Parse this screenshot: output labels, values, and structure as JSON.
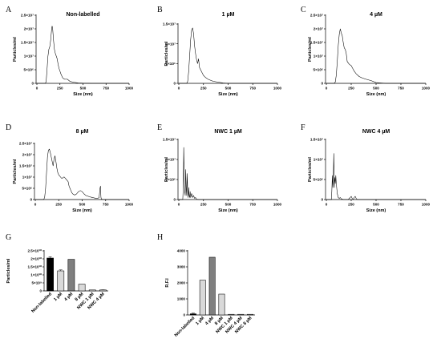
{
  "chart_data": [
    {
      "panel": "A",
      "type": "line",
      "title": "Non-labelled",
      "xlabel": "Size (nm)",
      "ylabel": "Particles/ml",
      "xlim": [
        0,
        1000
      ],
      "ylim": [
        0,
        25000000
      ],
      "xticks": [
        0,
        250,
        500,
        750,
        1000
      ],
      "yticks": [
        {
          "v": 0,
          "t": "0"
        },
        {
          "v": 5000000,
          "t": "5×10⁶"
        },
        {
          "v": 10000000,
          "t": "1×10⁷"
        },
        {
          "v": 15000000,
          "t": "1.5×10⁷"
        },
        {
          "v": 20000000,
          "t": "2×10⁷"
        },
        {
          "v": 25000000,
          "t": "2.5×10⁷"
        }
      ],
      "x": [
        0,
        60,
        90,
        100,
        110,
        120,
        130,
        140,
        150,
        160,
        165,
        170,
        180,
        190,
        200,
        210,
        220,
        230,
        240,
        250,
        260,
        280,
        300,
        330,
        360,
        400,
        450,
        500,
        600,
        700,
        800,
        1000
      ],
      "y": [
        0,
        0,
        0,
        500000,
        5000000,
        10000000,
        12500000,
        13500000,
        16000000,
        20000000,
        21000000,
        20500000,
        16000000,
        12500000,
        11000000,
        10000000,
        9000000,
        7000000,
        5500000,
        4500000,
        3500000,
        2000000,
        1500000,
        1500000,
        700000,
        400000,
        150000,
        50000,
        0,
        0,
        0,
        0
      ]
    },
    {
      "panel": "B",
      "type": "line",
      "title": "1 µM",
      "xlabel": "Size (nm)",
      "ylabel": "Particles/ml",
      "xlim": [
        0,
        1000
      ],
      "ylim": [
        0,
        15000000
      ],
      "xticks": [
        0,
        250,
        500,
        750,
        1000
      ],
      "yticks": [
        {
          "v": 0,
          "t": "0"
        },
        {
          "v": 5000000,
          "t": "5×10⁶"
        },
        {
          "v": 10000000,
          "t": "1×10⁷"
        },
        {
          "v": 15000000,
          "t": "1.5×10⁷"
        }
      ],
      "x": [
        0,
        50,
        80,
        90,
        100,
        110,
        120,
        130,
        140,
        150,
        160,
        170,
        180,
        190,
        200,
        210,
        230,
        250,
        270,
        300,
        350,
        400,
        450,
        500,
        600,
        800,
        1000
      ],
      "y": [
        0,
        0,
        0,
        500000,
        3000000,
        7000000,
        11000000,
        13500000,
        14000000,
        12500000,
        9500000,
        7500000,
        6000000,
        5000000,
        6200000,
        4000000,
        3000000,
        2000000,
        1500000,
        1000000,
        500000,
        300000,
        100000,
        0,
        0,
        0,
        0
      ]
    },
    {
      "panel": "C",
      "type": "line",
      "title": "4 µM",
      "xlabel": "Size (nm)",
      "ylabel": "Particles/ml",
      "xlim": [
        0,
        1000
      ],
      "ylim": [
        0,
        25000000
      ],
      "xticks": [
        0,
        250,
        500,
        750,
        1000
      ],
      "yticks": [
        {
          "v": 0,
          "t": "0"
        },
        {
          "v": 5000000,
          "t": "5×10⁶"
        },
        {
          "v": 10000000,
          "t": "1×10⁷"
        },
        {
          "v": 15000000,
          "t": "1.5×10⁷"
        },
        {
          "v": 20000000,
          "t": "2×10⁷"
        },
        {
          "v": 25000000,
          "t": "2.5×10⁷"
        }
      ],
      "x": [
        0,
        60,
        80,
        90,
        100,
        110,
        120,
        130,
        140,
        150,
        160,
        170,
        180,
        190,
        200,
        210,
        230,
        250,
        280,
        300,
        330,
        360,
        400,
        450,
        500,
        600,
        800,
        1000
      ],
      "y": [
        0,
        0,
        0,
        500000,
        3000000,
        8000000,
        14000000,
        18000000,
        20000000,
        18500000,
        17500000,
        15000000,
        13000000,
        12500000,
        11000000,
        8000000,
        7000000,
        6500000,
        4500000,
        3500000,
        2500000,
        2000000,
        1500000,
        1000000,
        300000,
        0,
        0,
        0
      ]
    },
    {
      "panel": "D",
      "type": "line",
      "title": "8 µM",
      "xlabel": "Size (nm)",
      "ylabel": "Particles/ml",
      "xlim": [
        0,
        1000
      ],
      "ylim": [
        0,
        25000000
      ],
      "xticks": [
        0,
        250,
        500,
        750,
        1000
      ],
      "yticks": [
        {
          "v": 0,
          "t": "0"
        },
        {
          "v": 5000000,
          "t": "5×10⁶"
        },
        {
          "v": 10000000,
          "t": "1×10⁷"
        },
        {
          "v": 15000000,
          "t": "1.5×10⁷"
        },
        {
          "v": 20000000,
          "t": "2×10⁷"
        },
        {
          "v": 25000000,
          "t": "2.5×10⁷"
        }
      ],
      "x": [
        0,
        70,
        90,
        100,
        110,
        120,
        130,
        140,
        150,
        160,
        170,
        180,
        190,
        200,
        210,
        220,
        230,
        240,
        250,
        260,
        270,
        280,
        290,
        300,
        310,
        320,
        330,
        340,
        350,
        360,
        370,
        380,
        390,
        400,
        420,
        440,
        460,
        480,
        500,
        520,
        540,
        560,
        580,
        600,
        620,
        640,
        660,
        680,
        690,
        695,
        700,
        705,
        720,
        800,
        1000
      ],
      "y": [
        0,
        0,
        0,
        1000000,
        5000000,
        12000000,
        19000000,
        22000000,
        22500000,
        21000000,
        19000000,
        17000000,
        15000000,
        18000000,
        19500000,
        17000000,
        14000000,
        12000000,
        11000000,
        10500000,
        10000000,
        9500000,
        9500000,
        10000000,
        10000000,
        9500000,
        9000000,
        8500000,
        8000000,
        6000000,
        5000000,
        4000000,
        3000000,
        2500000,
        2000000,
        2500000,
        3500000,
        4000000,
        3500000,
        2500000,
        1800000,
        1500000,
        1200000,
        1000000,
        800000,
        600000,
        500000,
        800000,
        5000000,
        6000000,
        1000000,
        200000,
        0,
        0,
        0
      ]
    },
    {
      "panel": "E",
      "type": "line",
      "title": "NWC 1 µM",
      "xlabel": "Size (nm)",
      "ylabel": "Particles/ml",
      "xlim": [
        0,
        1000
      ],
      "ylim": [
        0,
        15000000
      ],
      "xticks": [
        0,
        250,
        500,
        750,
        1000
      ],
      "yticks": [
        {
          "v": 0,
          "t": "0"
        },
        {
          "v": 5000000,
          "t": "5×10⁶"
        },
        {
          "v": 10000000,
          "t": "1×10⁷"
        },
        {
          "v": 15000000,
          "t": "1.5×10⁷"
        }
      ],
      "x": [
        0,
        30,
        40,
        45,
        50,
        55,
        60,
        65,
        70,
        75,
        80,
        85,
        90,
        95,
        100,
        105,
        110,
        115,
        120,
        130,
        140,
        150,
        160,
        170,
        180,
        200,
        250,
        1000
      ],
      "y": [
        0,
        0,
        0,
        3000000,
        13000000,
        5000000,
        2000000,
        1000000,
        7500000,
        3000000,
        1000000,
        6500000,
        2000000,
        500000,
        3000000,
        1000000,
        500000,
        2000000,
        500000,
        1500000,
        500000,
        1000000,
        300000,
        500000,
        100000,
        0,
        0,
        0
      ]
    },
    {
      "panel": "F",
      "type": "line",
      "title": "NWC 4 µM",
      "xlabel": "Size (nm)",
      "ylabel": "Particles/ml",
      "xlim": [
        0,
        1000
      ],
      "ylim": [
        0,
        15000000
      ],
      "xticks": [
        0,
        250,
        500,
        750,
        1000
      ],
      "yticks": [
        {
          "v": 0,
          "t": "0"
        },
        {
          "v": 5000000,
          "t": "5×10⁶"
        },
        {
          "v": 10000000,
          "t": "1×10⁷"
        },
        {
          "v": 15000000,
          "t": "1.5×10⁷"
        }
      ],
      "x": [
        0,
        40,
        50,
        55,
        60,
        65,
        70,
        75,
        80,
        85,
        90,
        95,
        100,
        110,
        120,
        130,
        140,
        150,
        160,
        170,
        180,
        220,
        240,
        250,
        260,
        270,
        280,
        290,
        300,
        310,
        320,
        1000
      ],
      "y": [
        0,
        0,
        0,
        2000000,
        6000000,
        3000000,
        5000000,
        11500000,
        3000000,
        5500000,
        4000000,
        6000000,
        4000000,
        1500000,
        500000,
        300000,
        500000,
        200000,
        100000,
        0,
        0,
        0,
        500000,
        800000,
        300000,
        0,
        500000,
        800000,
        300000,
        0,
        0,
        0
      ]
    },
    {
      "panel": "G",
      "type": "bar",
      "title": "",
      "xlabel": "",
      "ylabel": "Particles/ml",
      "ylim": [
        0,
        25000000000
      ],
      "yticks": [
        {
          "v": 0,
          "t": "0"
        },
        {
          "v": 5000000000,
          "t": "5×10⁹"
        },
        {
          "v": 10000000000,
          "t": "1×10¹⁰"
        },
        {
          "v": 15000000000,
          "t": "1.5×10¹⁰"
        },
        {
          "v": 20000000000,
          "t": "2×10¹⁰"
        },
        {
          "v": 25000000000,
          "t": "2.5×10¹⁰"
        }
      ],
      "categories": [
        "Non-labelled",
        "1 µM",
        "4 µM",
        "8 µM",
        "NWC 1 µM",
        "NWC 4 µM"
      ],
      "values": [
        20500000000,
        12500000000,
        19700000000,
        4200000000,
        300000000,
        400000000
      ],
      "errors": [
        800000000,
        600000000,
        0,
        0,
        0,
        300000000
      ],
      "colors": [
        "#000000",
        "#d9d9d9",
        "#7f7f7f",
        "#d9d9d9",
        "#d9d9d9",
        "#d9d9d9"
      ]
    },
    {
      "panel": "H",
      "type": "bar",
      "title": "",
      "xlabel": "",
      "ylabel": "R.F.I",
      "ylim": [
        0,
        4000
      ],
      "yticks": [
        {
          "v": 0,
          "t": "0"
        },
        {
          "v": 1000,
          "t": "1000"
        },
        {
          "v": 2000,
          "t": "2000"
        },
        {
          "v": 3000,
          "t": "3000"
        },
        {
          "v": 4000,
          "t": "4000"
        }
      ],
      "categories": [
        "Non-labelled",
        "1 µM",
        "4 µM",
        "8 µM",
        "NWC 1 µM",
        "NWC 4 µM",
        "NWC 8 µM"
      ],
      "values": [
        70,
        2170,
        3600,
        1300,
        0,
        0,
        0
      ],
      "errors": [
        40,
        0,
        0,
        0,
        0,
        0,
        0
      ],
      "colors": [
        "#000000",
        "#d9d9d9",
        "#7f7f7f",
        "#d9d9d9",
        "#d9d9d9",
        "#d9d9d9",
        "#d9d9d9"
      ]
    }
  ]
}
